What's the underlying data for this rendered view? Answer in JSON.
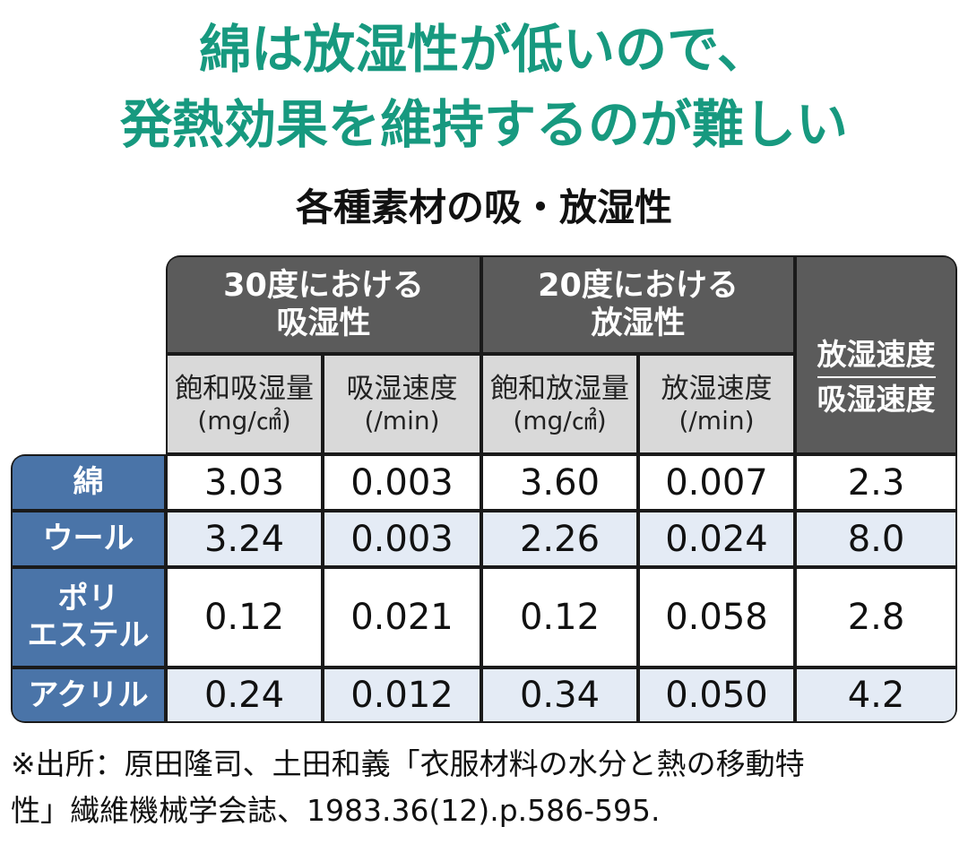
{
  "header": {
    "title_lines": [
      "綿は放湿性が低いので、",
      "発熱効果を維持するのが難しい"
    ],
    "subtitle": "各種素材の吸・放湿性"
  },
  "table": {
    "group_headers": [
      {
        "lines": [
          "30度における",
          "吸湿性"
        ]
      },
      {
        "lines": [
          "20度における",
          "放湿性"
        ]
      }
    ],
    "ratio_header": {
      "numerator": "放湿速度",
      "denominator": "吸湿速度"
    },
    "sub_headers": [
      {
        "label": "飽和吸湿量",
        "unit": "(mg/㎠)"
      },
      {
        "label": "吸湿速度",
        "unit": "(/min)"
      },
      {
        "label": "飽和放湿量",
        "unit": "(mg/㎠)"
      },
      {
        "label": "放湿速度",
        "unit": "(/min)"
      }
    ],
    "rows": [
      {
        "label_lines": [
          "綿"
        ],
        "values": [
          "3.03",
          "0.003",
          "3.60",
          "0.007",
          "2.3"
        ]
      },
      {
        "label_lines": [
          "ウール"
        ],
        "values": [
          "3.24",
          "0.003",
          "2.26",
          "0.024",
          "8.0"
        ]
      },
      {
        "label_lines": [
          "ポリ",
          "エステル"
        ],
        "values": [
          "0.12",
          "0.021",
          "0.12",
          "0.058",
          "2.8"
        ]
      },
      {
        "label_lines": [
          "アクリル"
        ],
        "values": [
          "0.24",
          "0.012",
          "0.34",
          "0.050",
          "4.2"
        ]
      }
    ]
  },
  "footnote": {
    "lines": [
      "※出所：原田隆司、土田和義「衣服材料の水分と熱の移動特",
      "性」繊維機械学会誌、1983.36(12).p.586-595."
    ]
  }
}
